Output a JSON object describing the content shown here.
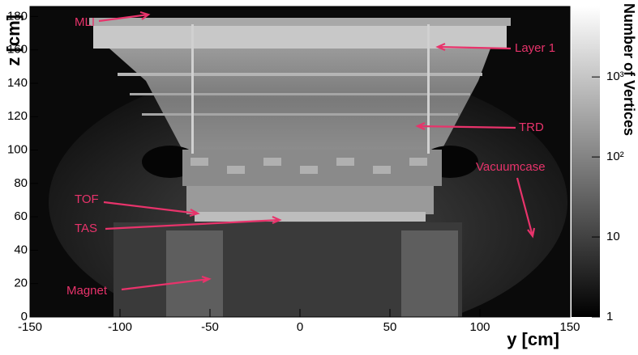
{
  "chart_data": {
    "type": "heatmap",
    "x_label": "y [cm]",
    "y_label": "z [cm]",
    "colorbar_label": "Number of Vertices",
    "xlim": [
      -150,
      150
    ],
    "xticks": [
      -150,
      -100,
      -50,
      0,
      50,
      100,
      150
    ],
    "ylim": [
      0,
      186
    ],
    "yticks": [
      0,
      20,
      40,
      60,
      80,
      100,
      120,
      140,
      160,
      180
    ],
    "zlim": [
      1,
      7600
    ],
    "zscale": "log",
    "zticks": [
      1,
      10,
      {
        "value": 100,
        "label": "10²"
      },
      {
        "value": 1000,
        "label": "10³"
      }
    ],
    "annotations": [
      "MLI",
      "Layer 1",
      "TRD",
      "Vacuumcase",
      "TOF",
      "TAS",
      "Magnet"
    ]
  }
}
